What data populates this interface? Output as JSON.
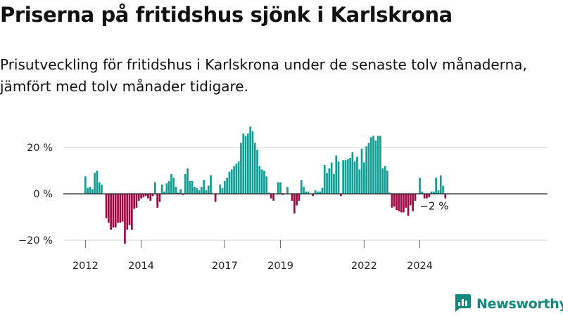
{
  "title": "Priserna på fritidshus sjönk i Karlskrona",
  "subtitle": "Prisutveckling för fritidshus i Karlskrona under de senaste tolv månaderna, jämfört med tolv månader tidigare.",
  "brand": {
    "name": "Newsworthy",
    "icon": "newsworthy-logo-icon",
    "color": "#11897d"
  },
  "colors": {
    "positive": "#0f9f95",
    "negative": "#a10a45",
    "grid": "#d9d9d9",
    "axis": "#222222"
  },
  "chart_data": {
    "type": "bar",
    "title": "Priserna på fritidshus sjönk i Karlskrona",
    "xlabel": "",
    "ylabel": "",
    "unit": "%",
    "ylim": [
      -22,
      30
    ],
    "yticks": [
      -20,
      0,
      20
    ],
    "ytick_labels": [
      "−20 %",
      "0 %",
      "20 %"
    ],
    "xticks": [
      {
        "label": "2012",
        "index": 0
      },
      {
        "label": "2014",
        "index": 24
      },
      {
        "label": "2017",
        "index": 60
      },
      {
        "label": "2019",
        "index": 84
      },
      {
        "label": "2022",
        "index": 120
      },
      {
        "label": "2024",
        "index": 144
      }
    ],
    "annotation": {
      "text": "−2 %",
      "index": 150
    },
    "grid": true,
    "series": [
      {
        "values": [
          7.5,
          2.5,
          3,
          2,
          9,
          10,
          5,
          4,
          0,
          -10.5,
          -12.5,
          -15.5,
          -14.5,
          -14.5,
          -12.5,
          -12.5,
          -12,
          -21.5,
          -15.5,
          -13.5,
          -15.5,
          -6.5,
          -6,
          -3,
          -2,
          -1.5,
          -1,
          -2,
          -3,
          -1,
          5,
          -6,
          -3.5,
          4,
          1,
          4.5,
          5.5,
          8.5,
          7,
          3,
          0.5,
          2,
          -0.5,
          8.5,
          11,
          5.5,
          5.5,
          3,
          2.5,
          1.5,
          3,
          6,
          1.5,
          3.5,
          8,
          0,
          -3.5,
          0,
          4,
          2.5,
          5.5,
          7,
          9.5,
          10.5,
          12,
          13,
          14,
          22,
          26,
          25,
          26,
          29,
          27,
          22,
          19,
          12,
          10.5,
          10,
          7.5,
          0.5,
          -2,
          -3,
          0,
          5,
          5,
          -0.5,
          0,
          3,
          0,
          -3,
          -8.5,
          -5,
          -3,
          6,
          3,
          1,
          1,
          0,
          -1,
          1.5,
          1,
          1,
          2.5,
          12.5,
          9,
          11,
          13.5,
          8.5,
          16.5,
          14,
          -1,
          14.5,
          14.5,
          15,
          15.5,
          18,
          14,
          16,
          10.5,
          19.5,
          13.5,
          20.5,
          22,
          24.5,
          25,
          23,
          25,
          25,
          11,
          12,
          10,
          0.5,
          -6,
          -5.5,
          -7,
          -7.5,
          -8,
          -8,
          -6,
          -9.5,
          -5,
          -7.5,
          -3,
          0,
          7,
          1,
          -2,
          -2,
          -1.5,
          1,
          1,
          7,
          1.5,
          8,
          3.5,
          -2
        ]
      }
    ]
  }
}
